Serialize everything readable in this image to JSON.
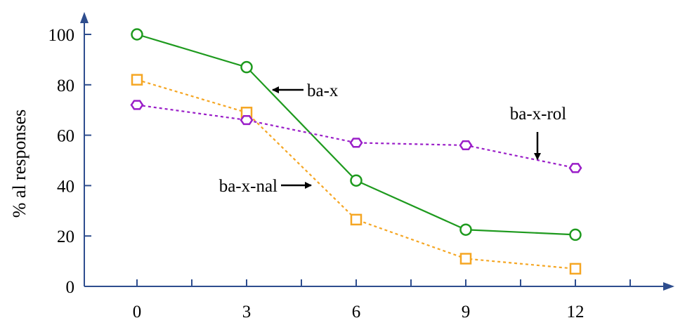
{
  "chart_data": {
    "type": "line",
    "x": [
      0,
      3,
      6,
      9,
      12
    ],
    "xticks": [
      "0",
      "3",
      "6",
      "9",
      "12"
    ],
    "yticks": [
      "0",
      "20",
      "40",
      "60",
      "80",
      "100"
    ],
    "ylabel": "% al responses",
    "xlim": [
      -1.5,
      15
    ],
    "ylim": [
      0,
      109
    ],
    "axis_color": "#2E4D8E",
    "series": [
      {
        "name": "ba-x",
        "values": [
          100,
          87,
          42,
          22.5,
          20.5
        ],
        "color": "#1E9A1E",
        "marker": "circle",
        "dash": "solid"
      },
      {
        "name": "ba-x-nal",
        "values": [
          82,
          69,
          26.5,
          11,
          7
        ],
        "color": "#F5A623",
        "marker": "square",
        "dash": "dotted"
      },
      {
        "name": "ba-x-rol",
        "values": [
          72,
          66,
          57,
          56,
          47
        ],
        "color": "#9A1EC8",
        "marker": "hexagon",
        "dash": "dotted"
      }
    ],
    "annotations": [
      {
        "text": "ba-x",
        "arrow": "left"
      },
      {
        "text": "ba-x-nal",
        "arrow": "right"
      },
      {
        "text": "ba-x-rol",
        "arrow": "down"
      }
    ]
  }
}
